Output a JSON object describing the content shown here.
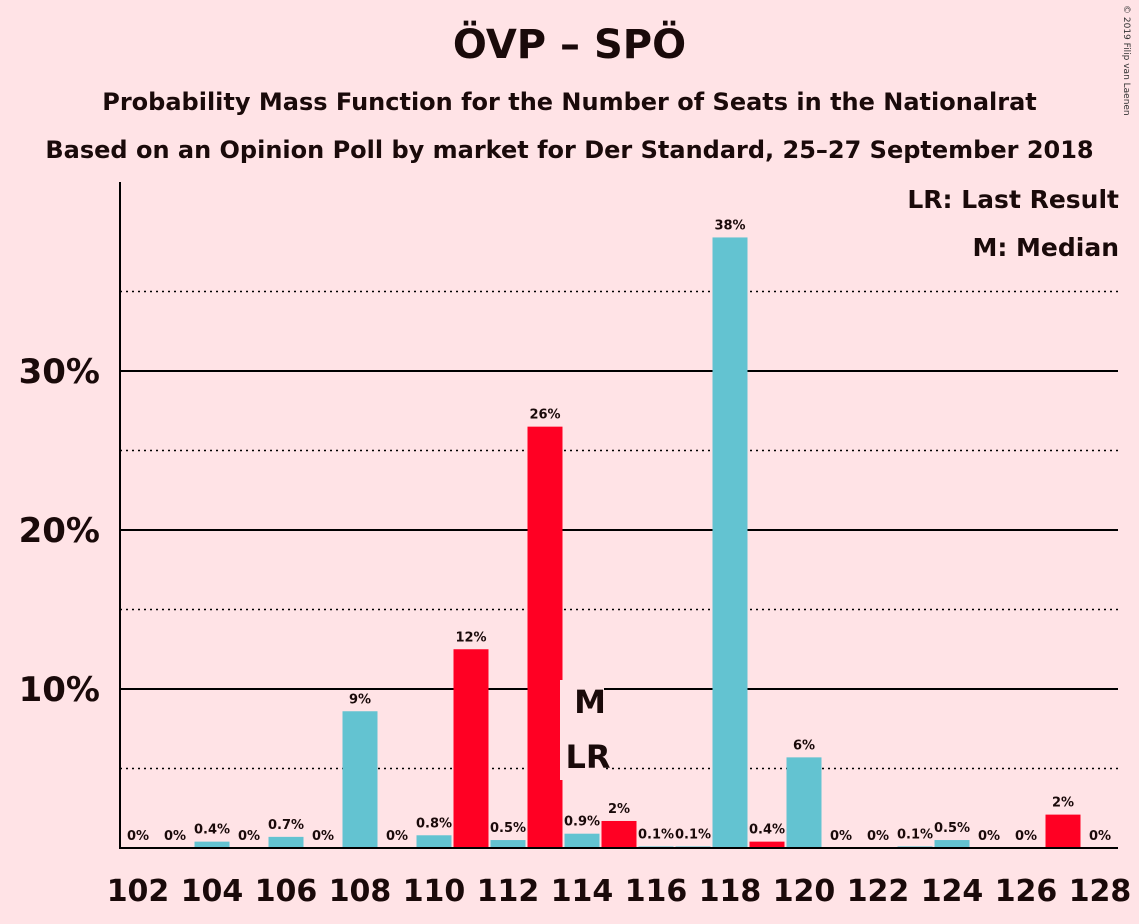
{
  "title": "ÖVP – SPÖ",
  "subtitle1": "Probability Mass Function for the Number of Seats in the Nationalrat",
  "subtitle2": "Based on an Opinion Poll by market for Der Standard, 25–27 September 2018",
  "copyright": "© 2019 Filip van Laenen",
  "legend": {
    "last_result": "LR: Last Result",
    "median": "M: Median"
  },
  "markers": {
    "median_label": "M",
    "last_result_label": "LR",
    "median_seat": 114,
    "last_result_seat": 114
  },
  "colors": {
    "background": "#FFE3E6",
    "bar_teal": "#63C3D1",
    "bar_red": "#FF0023",
    "text": "#1a0a0a"
  },
  "chart_data": {
    "type": "bar",
    "title": "ÖVP – SPÖ",
    "xlabel": "",
    "ylabel": "",
    "ylim": [
      0,
      41.5
    ],
    "y_ticks": [
      10,
      20,
      30
    ],
    "y_tick_labels": [
      "10%",
      "20%",
      "30%"
    ],
    "y_dotted_lines": [
      5,
      15,
      25,
      35
    ],
    "x_tick_labels": [
      "102",
      "104",
      "106",
      "108",
      "110",
      "112",
      "114",
      "116",
      "118",
      "120",
      "122",
      "124",
      "126",
      "128"
    ],
    "grid": true,
    "legend_position": "top-right",
    "categories": [
      102,
      103,
      104,
      105,
      106,
      107,
      108,
      109,
      110,
      111,
      112,
      113,
      114,
      115,
      116,
      117,
      118,
      119,
      120,
      121,
      122,
      123,
      124,
      125,
      126,
      127,
      128
    ],
    "values": [
      0,
      0,
      0.4,
      0,
      0.7,
      0,
      8.6,
      0,
      0.8,
      12.5,
      0.5,
      26.5,
      0.9,
      1.7,
      0.1,
      0.1,
      38.4,
      0.4,
      5.7,
      0,
      0,
      0.1,
      0.5,
      0,
      0,
      2.1,
      0
    ],
    "labels": [
      "0%",
      "0%",
      "0.4%",
      "0%",
      "0.7%",
      "0%",
      "9%",
      "0%",
      "0.8%",
      "12%",
      "0.5%",
      "26%",
      "0.9%",
      "2%",
      "0.1%",
      "0.1%",
      "38%",
      "0.4%",
      "6%",
      "0%",
      "0%",
      "0.1%",
      "0.5%",
      "0%",
      "0%",
      "2%",
      "0%"
    ],
    "colors": [
      "teal",
      "teal",
      "teal",
      "teal",
      "teal",
      "teal",
      "teal",
      "teal",
      "teal",
      "red",
      "teal",
      "red",
      "teal",
      "red",
      "teal",
      "teal",
      "teal",
      "red",
      "teal",
      "teal",
      "teal",
      "teal",
      "teal",
      "teal",
      "teal",
      "red",
      "teal"
    ]
  }
}
